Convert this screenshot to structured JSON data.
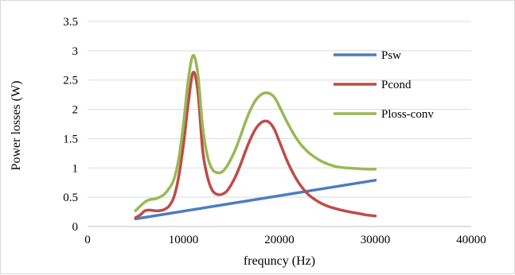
{
  "chart_data": {
    "type": "line",
    "title": "",
    "xlabel": "frequncy (Hz)",
    "ylabel": "Power losses (W)",
    "xlim": [
      0,
      40000
    ],
    "ylim": [
      0,
      3.5
    ],
    "x_ticks": [
      "0",
      "10000",
      "20000",
      "30000",
      "40000"
    ],
    "y_ticks": [
      "0",
      "0.5",
      "1",
      "1.5",
      "2",
      "2.5",
      "3",
      "3.5"
    ],
    "grid": "horizontal",
    "legend_position": "right",
    "series": [
      {
        "name": "Psw",
        "color": "#4a7ebb",
        "points": [
          [
            5000,
            0.13
          ],
          [
            30000,
            0.79
          ]
        ]
      },
      {
        "name": "Pcond",
        "color": "#be4b48",
        "points": [
          [
            5000,
            0.15
          ],
          [
            5500,
            0.2
          ],
          [
            6000,
            0.27
          ],
          [
            6500,
            0.28
          ],
          [
            7000,
            0.27
          ],
          [
            7500,
            0.27
          ],
          [
            8000,
            0.29
          ],
          [
            8500,
            0.35
          ],
          [
            9000,
            0.5
          ],
          [
            9500,
            0.85
          ],
          [
            10000,
            1.4
          ],
          [
            10500,
            2.1
          ],
          [
            11000,
            2.63
          ],
          [
            11500,
            2.3
          ],
          [
            12000,
            1.3
          ],
          [
            12500,
            0.85
          ],
          [
            13000,
            0.62
          ],
          [
            13500,
            0.55
          ],
          [
            14000,
            0.55
          ],
          [
            14500,
            0.6
          ],
          [
            15000,
            0.72
          ],
          [
            15500,
            0.88
          ],
          [
            16000,
            1.08
          ],
          [
            16500,
            1.3
          ],
          [
            17000,
            1.5
          ],
          [
            17500,
            1.66
          ],
          [
            18000,
            1.76
          ],
          [
            18500,
            1.8
          ],
          [
            19000,
            1.77
          ],
          [
            19500,
            1.65
          ],
          [
            20000,
            1.45
          ],
          [
            21000,
            1.05
          ],
          [
            22000,
            0.75
          ],
          [
            23000,
            0.55
          ],
          [
            24000,
            0.43
          ],
          [
            25000,
            0.35
          ],
          [
            26000,
            0.3
          ],
          [
            27000,
            0.26
          ],
          [
            28000,
            0.23
          ],
          [
            29000,
            0.2
          ],
          [
            30000,
            0.18
          ]
        ]
      },
      {
        "name": "Ploss-conv",
        "color": "#98b954",
        "points": [
          [
            5000,
            0.27
          ],
          [
            5500,
            0.35
          ],
          [
            6000,
            0.42
          ],
          [
            6500,
            0.46
          ],
          [
            7000,
            0.47
          ],
          [
            7500,
            0.5
          ],
          [
            8000,
            0.55
          ],
          [
            8500,
            0.65
          ],
          [
            9000,
            0.8
          ],
          [
            9500,
            1.15
          ],
          [
            10000,
            1.75
          ],
          [
            10500,
            2.5
          ],
          [
            11000,
            2.92
          ],
          [
            11500,
            2.6
          ],
          [
            12000,
            1.7
          ],
          [
            12500,
            1.2
          ],
          [
            13000,
            0.98
          ],
          [
            13500,
            0.92
          ],
          [
            14000,
            0.93
          ],
          [
            14500,
            1.02
          ],
          [
            15000,
            1.17
          ],
          [
            15500,
            1.35
          ],
          [
            16000,
            1.57
          ],
          [
            16500,
            1.8
          ],
          [
            17000,
            2.0
          ],
          [
            17500,
            2.15
          ],
          [
            18000,
            2.24
          ],
          [
            18500,
            2.28
          ],
          [
            19000,
            2.27
          ],
          [
            19500,
            2.2
          ],
          [
            20000,
            2.05
          ],
          [
            21000,
            1.72
          ],
          [
            22000,
            1.45
          ],
          [
            23000,
            1.27
          ],
          [
            24000,
            1.15
          ],
          [
            25000,
            1.07
          ],
          [
            26000,
            1.02
          ],
          [
            27000,
            1.0
          ],
          [
            28000,
            0.99
          ],
          [
            29000,
            0.98
          ],
          [
            30000,
            0.98
          ]
        ]
      }
    ]
  }
}
